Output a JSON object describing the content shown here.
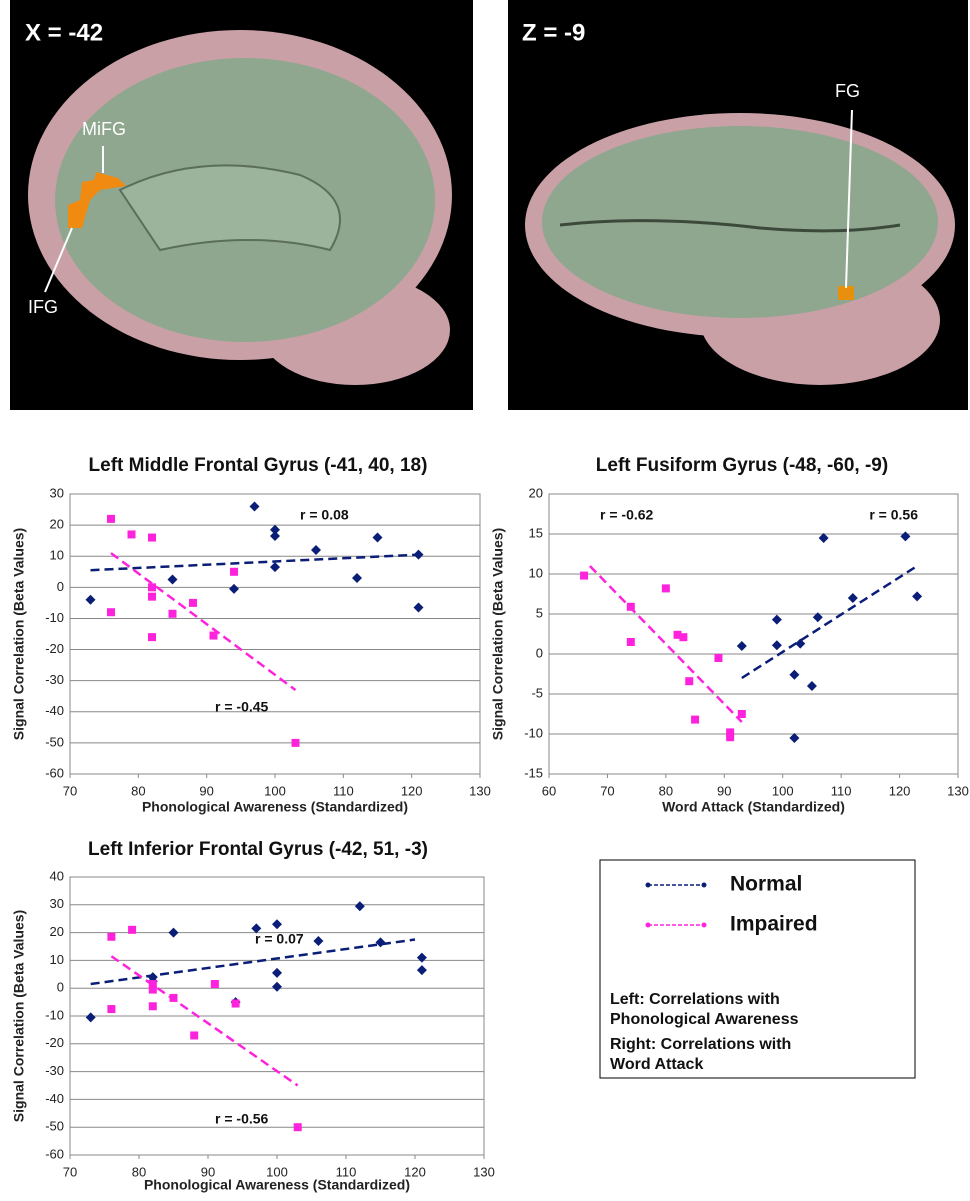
{
  "panels": [
    {
      "label": "X = -42",
      "regions": [
        "MiFG",
        "IFG"
      ]
    },
    {
      "label": "Z = -9",
      "regions": [
        "FG"
      ]
    }
  ],
  "legend": {
    "entries": [
      {
        "name": "Normal",
        "color": "#0a1e78"
      },
      {
        "name": "Impaired",
        "color": "#ff22dd"
      }
    ],
    "notes": [
      "Left: Correlations with Phonological Awareness",
      "Right: Correlations with Word Attack"
    ]
  },
  "chart_data": [
    {
      "type": "scatter",
      "title": "Left Middle Frontal Gyrus (-41, 40, 18)",
      "x_label": "Phonological Awareness (Standardized)",
      "y_label": "Signal Correlation (Beta Values)",
      "xlim": [
        70,
        130
      ],
      "xticks": [
        70,
        80,
        90,
        100,
        110,
        120,
        130
      ],
      "ylim": [
        -60,
        30
      ],
      "yticks": [
        -60,
        -50,
        -40,
        -30,
        -20,
        -10,
        0,
        10,
        20,
        30
      ],
      "grid": true,
      "series": [
        {
          "color": "#0a1e78",
          "marker": "diamond",
          "x": [
            73,
            85,
            94,
            97,
            100,
            100,
            100,
            106,
            112,
            115,
            121,
            121
          ],
          "values": [
            -4,
            2.5,
            -0.5,
            26,
            18.5,
            16.5,
            6.5,
            12,
            3,
            16,
            10.5,
            -6.5
          ],
          "fit": {
            "x": [
              73,
              121
            ],
            "y": [
              5.5,
              10.5
            ]
          },
          "r_label": "r = 0.08"
        },
        {
          "color": "#ff22dd",
          "marker": "square",
          "x": [
            76,
            76,
            79,
            82,
            82,
            82,
            82,
            85,
            88,
            91,
            94,
            103
          ],
          "values": [
            22,
            -8,
            17,
            16,
            0,
            -3,
            -16,
            -8.5,
            -5,
            -15.5,
            5,
            -50
          ],
          "fit": {
            "x": [
              76,
              103
            ],
            "y": [
              11,
              -33
            ]
          },
          "r_label": "r = -0.45"
        }
      ]
    },
    {
      "type": "scatter",
      "title": "Left Fusiform Gyrus (-48, -60, -9)",
      "x_label": "Word Attack (Standardized)",
      "y_label": "Signal Correlation (Beta Values)",
      "xlim": [
        60,
        130
      ],
      "xticks": [
        60,
        70,
        80,
        90,
        100,
        110,
        120,
        130
      ],
      "ylim": [
        -15,
        20
      ],
      "yticks": [
        -15,
        -10,
        -5,
        0,
        5,
        10,
        15,
        20
      ],
      "grid": true,
      "series": [
        {
          "color": "#0a1e78",
          "marker": "diamond",
          "x": [
            93,
            99,
            99,
            102,
            102,
            103,
            105,
            106,
            107,
            112,
            121,
            123
          ],
          "values": [
            1,
            4.3,
            1.1,
            -2.6,
            -10.5,
            1.3,
            -4,
            4.6,
            14.5,
            7,
            14.7,
            7.2
          ],
          "fit": {
            "x": [
              93,
              123
            ],
            "y": [
              -3,
              11
            ]
          },
          "r_label": "r = 0.56"
        },
        {
          "color": "#ff22dd",
          "marker": "square",
          "x": [
            66,
            74,
            74,
            80,
            82,
            83,
            84,
            85,
            89,
            91,
            91,
            93
          ],
          "values": [
            9.8,
            5.9,
            1.5,
            8.2,
            2.4,
            2.1,
            -3.4,
            -8.2,
            -0.5,
            -9.8,
            -10.4,
            -7.5
          ],
          "fit": {
            "x": [
              67,
              93
            ],
            "y": [
              11,
              -8.5
            ]
          },
          "r_label": "r = -0.62"
        }
      ]
    },
    {
      "type": "scatter",
      "title": "Left Inferior Frontal Gyrus (-42, 51, -3)",
      "x_label": "Phonological Awareness (Standardized)",
      "y_label": "Signal Correlation (Beta Values)",
      "xlim": [
        70,
        130
      ],
      "xticks": [
        70,
        80,
        90,
        100,
        110,
        120,
        130
      ],
      "ylim": [
        -60,
        40
      ],
      "yticks": [
        -60,
        -50,
        -40,
        -30,
        -20,
        -10,
        0,
        10,
        20,
        30,
        40
      ],
      "grid": true,
      "series": [
        {
          "color": "#0a1e78",
          "marker": "diamond",
          "x": [
            73,
            82,
            82,
            85,
            94,
            97,
            100,
            100,
            100,
            106,
            112,
            115,
            121,
            121
          ],
          "values": [
            -10.5,
            2.5,
            4,
            20,
            -5,
            21.5,
            23,
            5.5,
            0.5,
            17,
            29.5,
            16.5,
            11,
            6.5
          ],
          "fit": {
            "x": [
              73,
              120
            ],
            "y": [
              1.5,
              17.5
            ]
          },
          "r_label": "r = 0.07"
        },
        {
          "color": "#ff22dd",
          "marker": "square",
          "x": [
            76,
            76,
            79,
            82,
            82,
            82,
            85,
            88,
            91,
            94,
            103
          ],
          "values": [
            18.5,
            -7.5,
            21,
            1.5,
            -0.5,
            -6.5,
            -3.5,
            -17,
            1.5,
            -5.5,
            -50
          ],
          "fit": {
            "x": [
              76,
              103
            ],
            "y": [
              11.5,
              -35
            ]
          },
          "r_label": "r = -0.56"
        }
      ]
    }
  ]
}
